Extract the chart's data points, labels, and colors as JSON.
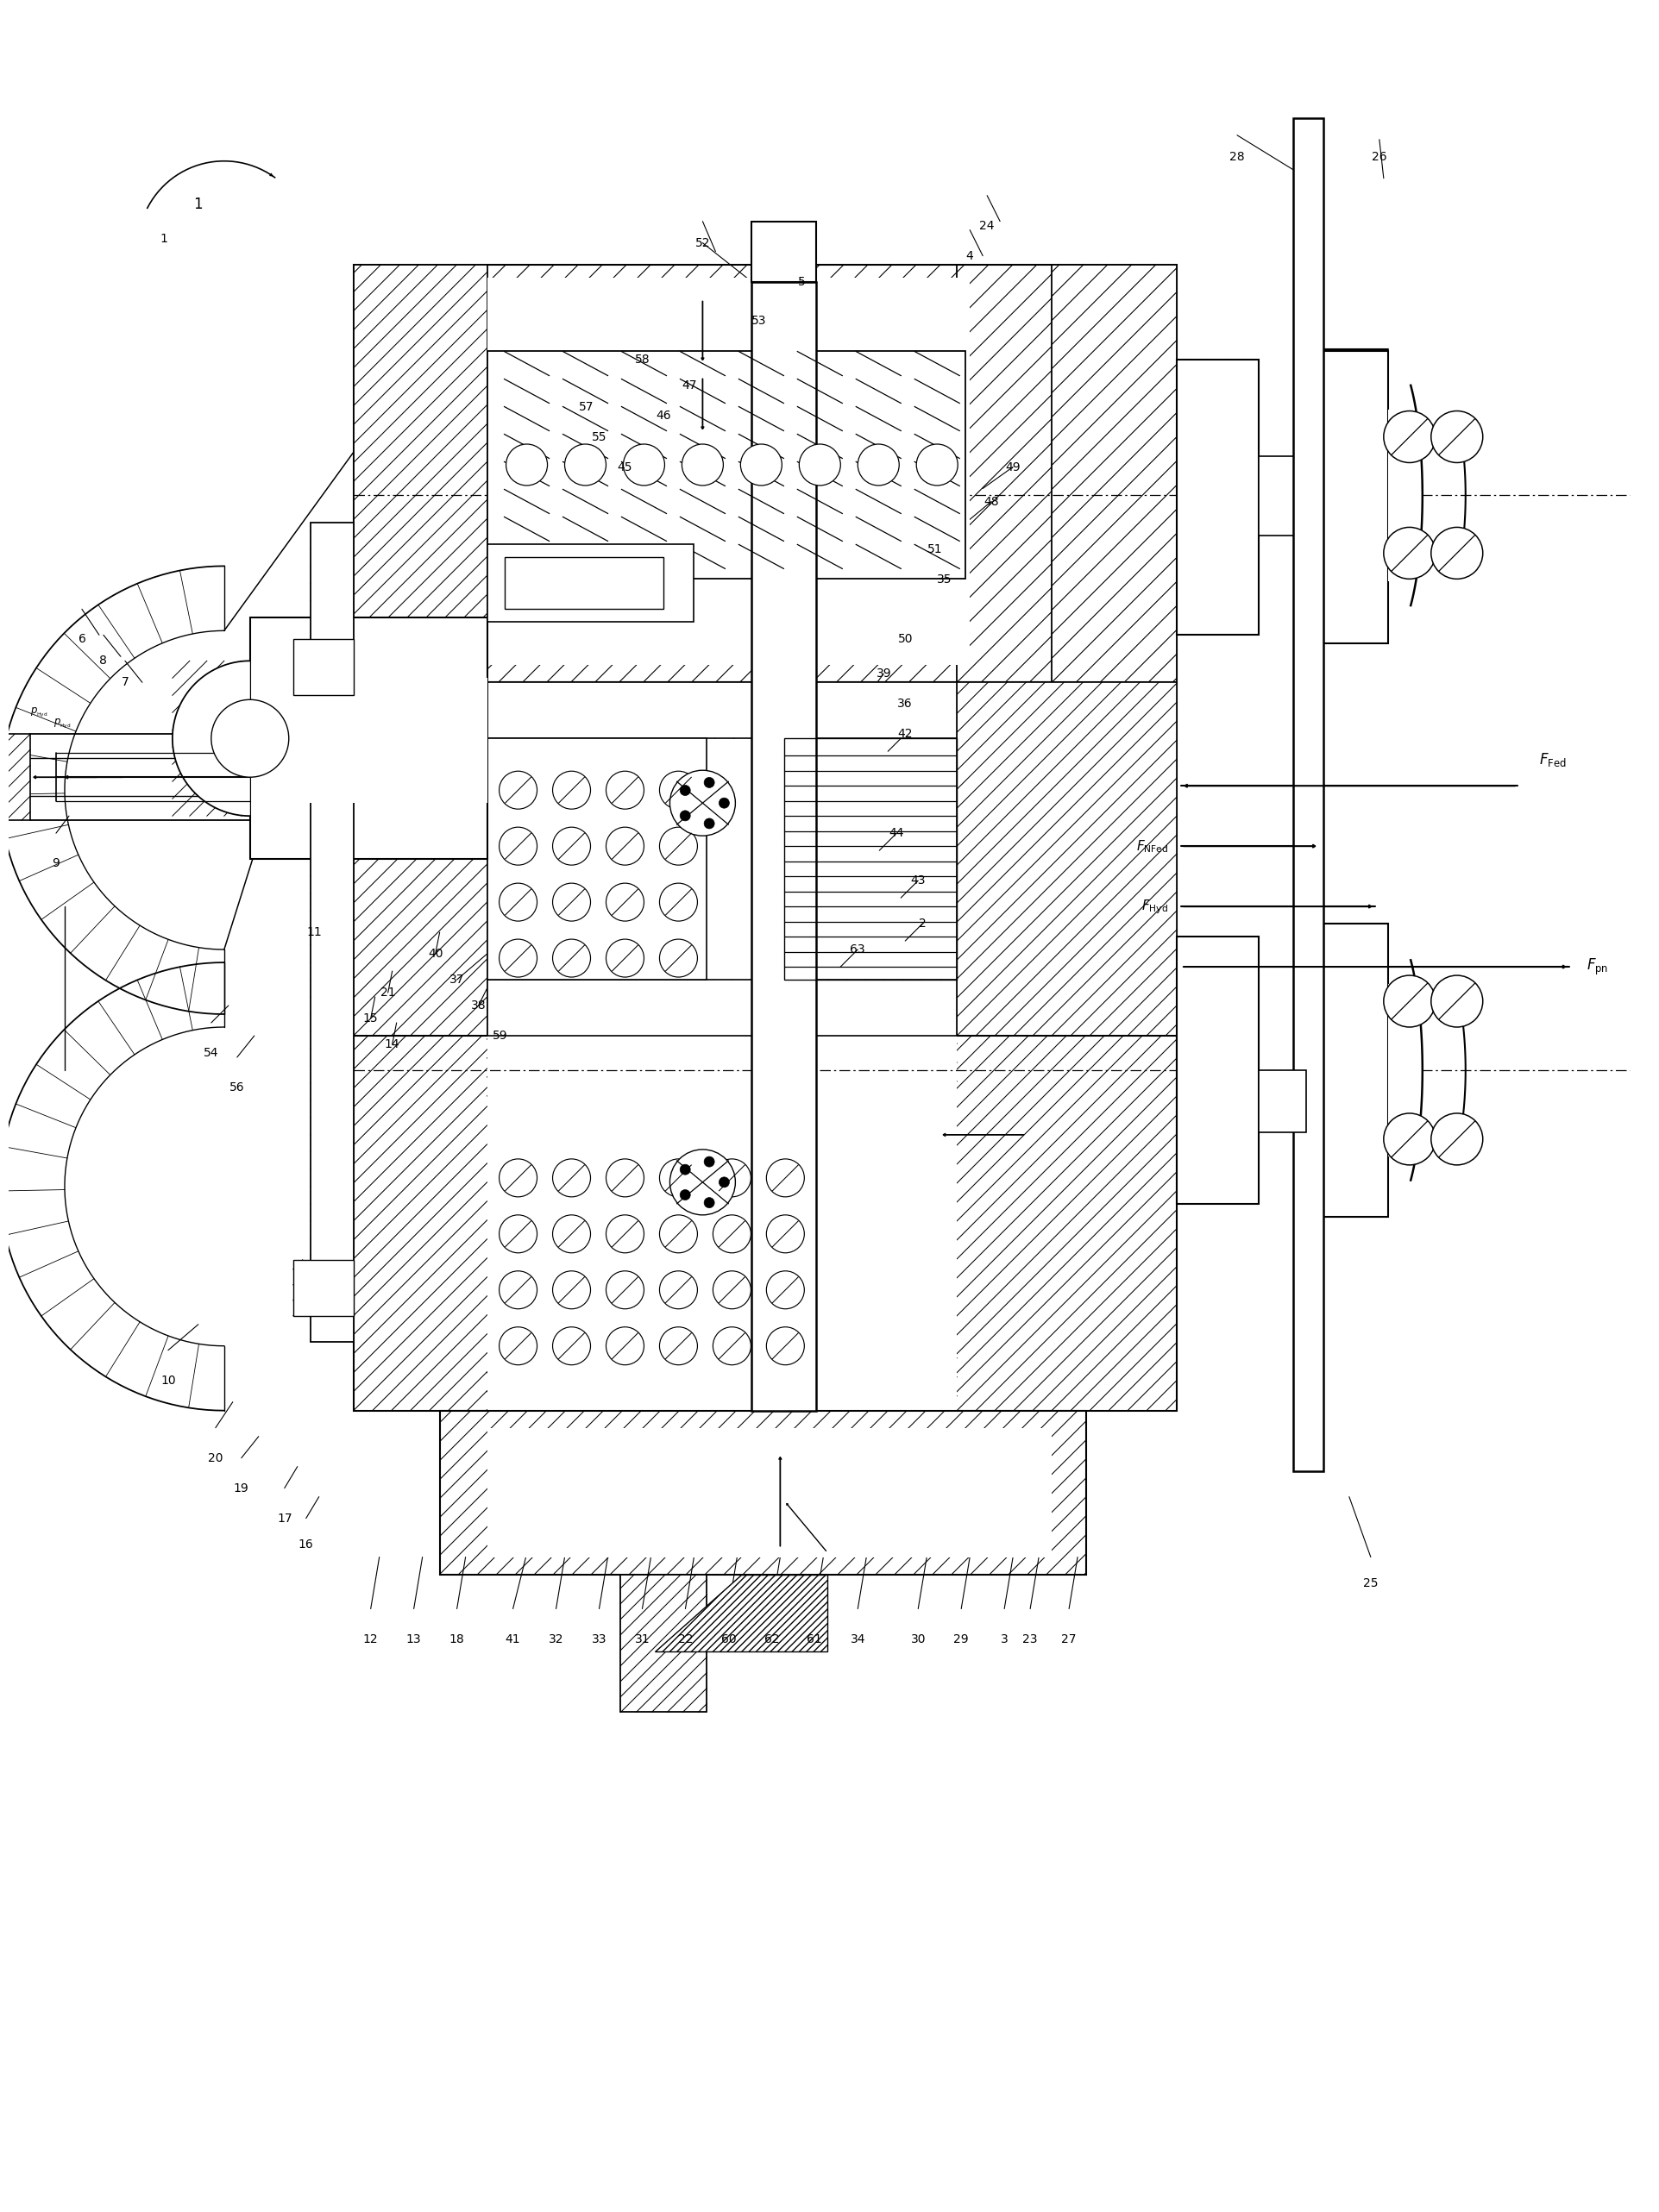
{
  "bg": "#ffffff",
  "lc": "#000000",
  "fig_w": 19.05,
  "fig_h": 25.47,
  "num_labels": [
    [
      "1",
      1.8,
      22.8
    ],
    [
      "2",
      10.6,
      14.85
    ],
    [
      "3",
      11.55,
      6.55
    ],
    [
      "4",
      11.15,
      22.6
    ],
    [
      "5",
      9.2,
      22.3
    ],
    [
      "6",
      0.85,
      18.15
    ],
    [
      "7",
      1.35,
      17.65
    ],
    [
      "8",
      1.1,
      17.9
    ],
    [
      "9",
      0.55,
      15.55
    ],
    [
      "10",
      1.85,
      9.55
    ],
    [
      "11",
      3.55,
      14.75
    ],
    [
      "12",
      4.2,
      6.55
    ],
    [
      "13",
      4.7,
      6.55
    ],
    [
      "14",
      4.45,
      13.45
    ],
    [
      "15",
      4.2,
      13.75
    ],
    [
      "16",
      3.45,
      7.65
    ],
    [
      "17",
      3.2,
      7.95
    ],
    [
      "18",
      5.2,
      6.55
    ],
    [
      "19",
      2.7,
      8.3
    ],
    [
      "20",
      2.4,
      8.65
    ],
    [
      "21",
      4.4,
      14.05
    ],
    [
      "22",
      7.85,
      6.55
    ],
    [
      "23",
      11.85,
      6.55
    ],
    [
      "24",
      11.35,
      22.95
    ],
    [
      "25",
      15.8,
      7.2
    ],
    [
      "26",
      15.9,
      23.75
    ],
    [
      "27",
      12.3,
      6.55
    ],
    [
      "28",
      14.25,
      23.75
    ],
    [
      "29",
      11.05,
      6.55
    ],
    [
      "30",
      10.55,
      6.55
    ],
    [
      "31",
      7.35,
      6.55
    ],
    [
      "32",
      6.35,
      6.55
    ],
    [
      "33",
      6.85,
      6.55
    ],
    [
      "34",
      9.85,
      6.55
    ],
    [
      "35",
      10.85,
      18.85
    ],
    [
      "36",
      10.4,
      17.4
    ],
    [
      "37",
      5.2,
      14.2
    ],
    [
      "38",
      5.45,
      13.9
    ],
    [
      "39",
      10.15,
      17.75
    ],
    [
      "40",
      4.95,
      14.5
    ],
    [
      "41",
      5.85,
      6.55
    ],
    [
      "42",
      10.4,
      17.05
    ],
    [
      "43",
      10.55,
      15.35
    ],
    [
      "44",
      10.3,
      15.9
    ],
    [
      "45",
      7.15,
      20.15
    ],
    [
      "46",
      7.6,
      20.75
    ],
    [
      "47",
      7.9,
      21.1
    ],
    [
      "48",
      11.4,
      19.75
    ],
    [
      "49",
      11.65,
      20.15
    ],
    [
      "50",
      10.4,
      18.15
    ],
    [
      "51",
      10.75,
      19.2
    ],
    [
      "52",
      8.05,
      22.75
    ],
    [
      "53",
      8.7,
      21.85
    ],
    [
      "54",
      2.35,
      13.35
    ],
    [
      "55",
      6.85,
      20.5
    ],
    [
      "56",
      2.65,
      12.95
    ],
    [
      "57",
      6.7,
      20.85
    ],
    [
      "58",
      7.35,
      21.4
    ],
    [
      "59",
      5.7,
      13.55
    ],
    [
      "60",
      8.35,
      6.55
    ],
    [
      "61",
      9.35,
      6.55
    ],
    [
      "62",
      8.85,
      6.55
    ],
    [
      "63",
      9.85,
      14.55
    ]
  ]
}
